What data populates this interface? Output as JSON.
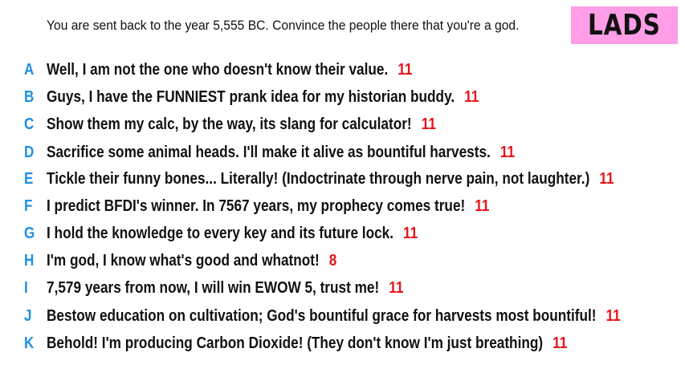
{
  "prompt": "You are sent back to the year 5,555 BC. Convince the people there that you're a god.",
  "team": {
    "name": "LADS",
    "badge_color": "#ff9ee6"
  },
  "colors": {
    "letter": "#1d8fe0",
    "count": "#e8141a",
    "text": "#111111"
  },
  "entries": [
    {
      "letter": "A",
      "text": "Well, I am not the one who doesn't know their value.",
      "count": "11"
    },
    {
      "letter": "B",
      "text": "Guys, I have the FUNNIEST prank idea for my historian buddy.",
      "count": "11"
    },
    {
      "letter": "C",
      "text": "Show them my calc, by the way, its slang for calculator!",
      "count": "11"
    },
    {
      "letter": "D",
      "text": "Sacrifice some animal heads. I'll make it alive as bountiful harvests.",
      "count": "11"
    },
    {
      "letter": "E",
      "text": "Tickle their funny bones... Literally! (Indoctrinate through nerve pain, not laughter.)",
      "count": "11"
    },
    {
      "letter": "F",
      "text": "I predict BFDI's winner. In 7567 years, my prophecy comes true!",
      "count": "11"
    },
    {
      "letter": "G",
      "text": "I hold the knowledge to every key and its future lock.",
      "count": "11"
    },
    {
      "letter": "H",
      "text": "I'm god, I know what's good and whatnot!",
      "count": "8"
    },
    {
      "letter": "I",
      "text": "7,579 years from now, I will win EWOW 5, trust me!",
      "count": "11"
    },
    {
      "letter": "J",
      "text": "Bestow education on cultivation; God's bountiful grace for harvests most bountiful!",
      "count": "11"
    },
    {
      "letter": "K",
      "text": "Behold! I'm producing Carbon Dioxide! (They don't know I'm just breathing)",
      "count": "11"
    }
  ]
}
